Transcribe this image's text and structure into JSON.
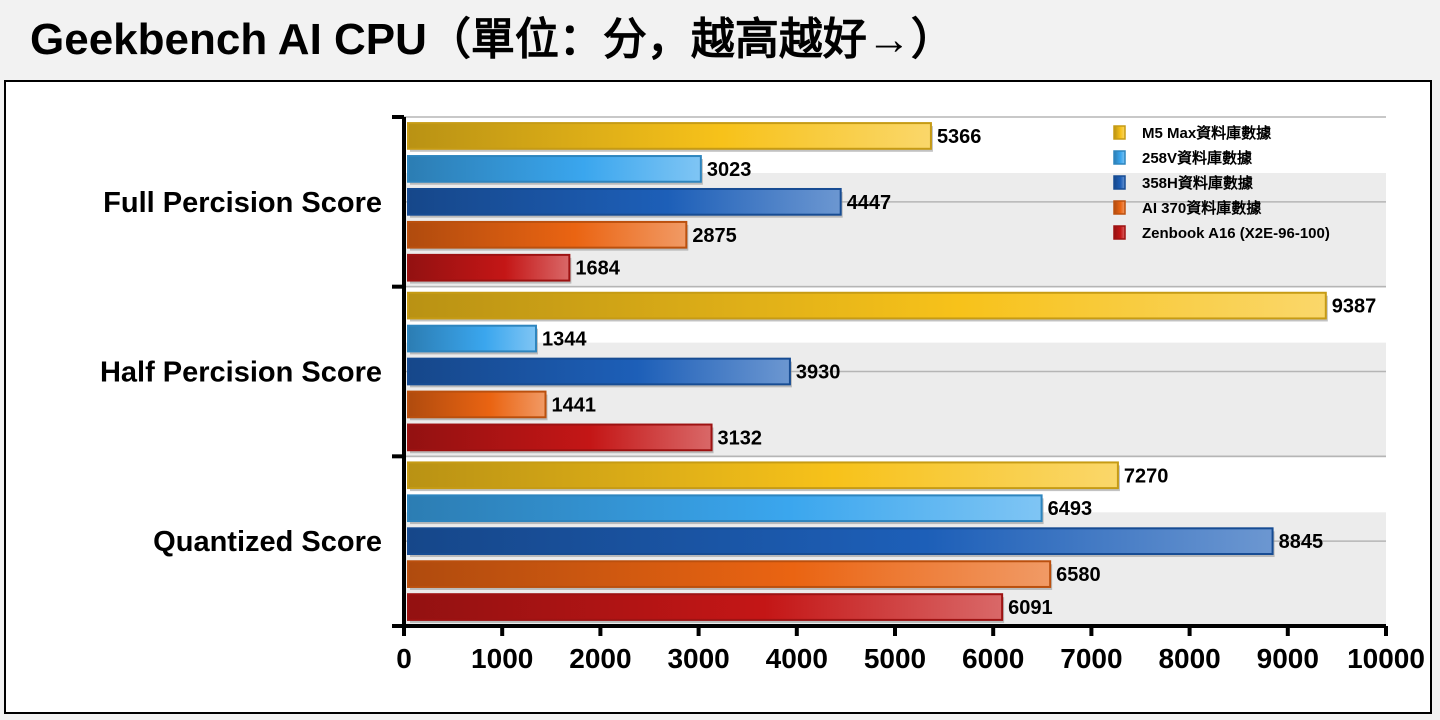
{
  "chart_data": {
    "type": "bar",
    "orientation": "horizontal",
    "title": "Geekbench AI CPU（單位：分，越高越好→）",
    "categories": [
      "Full Percision Score",
      "Half Percision Score",
      "Quantized Score"
    ],
    "series": [
      {
        "name": "M5 Max資料庫數據",
        "color": "#f7c21a",
        "values": [
          5366,
          9387,
          7270
        ]
      },
      {
        "name": "258V資料庫數據",
        "color": "#3aa6ee",
        "values": [
          3023,
          1344,
          6493
        ]
      },
      {
        "name": "358H資料庫數據",
        "color": "#1d5fb8",
        "values": [
          4447,
          3930,
          8845
        ]
      },
      {
        "name": "AI 370資料庫數據",
        "color": "#ea6412",
        "values": [
          2875,
          1441,
          6580
        ]
      },
      {
        "name": "Zenbook A16 (X2E-96-100)",
        "color": "#c41616",
        "values": [
          1684,
          3132,
          6091
        ]
      }
    ],
    "xlim": [
      0,
      10000
    ],
    "xticks": [
      0,
      1000,
      2000,
      3000,
      4000,
      5000,
      6000,
      7000,
      8000,
      9000,
      10000
    ],
    "xlabel": "",
    "ylabel": "",
    "grid": true,
    "legend_position": "top-right"
  }
}
